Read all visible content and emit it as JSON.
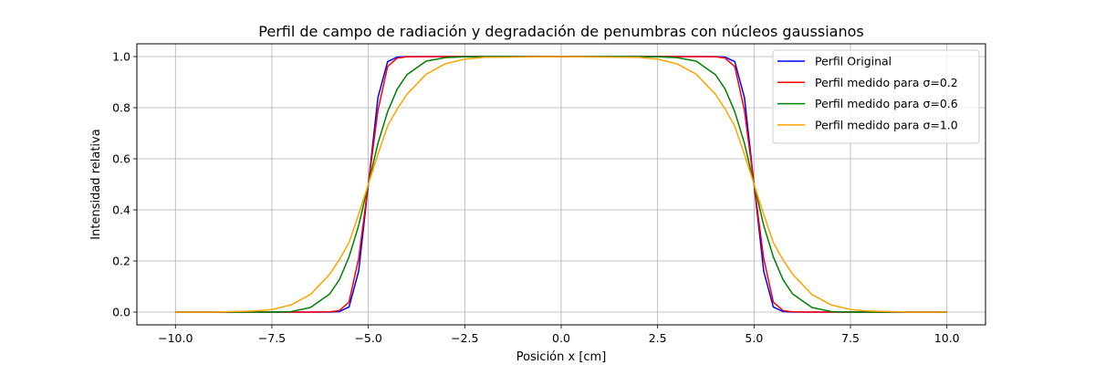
{
  "chart_data": {
    "type": "line",
    "title": "Perfil de campo de radiación y degradación de penumbras con núcleos gaussianos",
    "xlabel": "Posición x [cm]",
    "ylabel": "Intensidad relativa",
    "xlim": [
      -11,
      11
    ],
    "ylim": [
      -0.05,
      1.05
    ],
    "grid": true,
    "legend_position": "top-right",
    "xticks": [
      -10.0,
      -7.5,
      -5.0,
      -2.5,
      0.0,
      2.5,
      5.0,
      7.5,
      10.0
    ],
    "xtick_labels": [
      "−10.0",
      "−7.5",
      "−5.0",
      "−2.5",
      "0.0",
      "2.5",
      "5.0",
      "7.5",
      "10.0"
    ],
    "yticks": [
      0.0,
      0.2,
      0.4,
      0.6,
      0.8,
      1.0
    ],
    "ytick_labels": [
      "0.0",
      "0.2",
      "0.4",
      "0.6",
      "0.8",
      "1.0"
    ],
    "x": [
      -10,
      -9,
      -8,
      -7.5,
      -7,
      -6.5,
      -6,
      -5.75,
      -5.5,
      -5.25,
      -5,
      -4.75,
      -4.5,
      -4.25,
      -4,
      -3.5,
      -3,
      -2.5,
      -2,
      0,
      2,
      2.5,
      3,
      3.5,
      4,
      4.25,
      4.5,
      4.75,
      5,
      5.25,
      5.5,
      5.75,
      6,
      6.5,
      7,
      7.5,
      8,
      9,
      10
    ],
    "series": [
      {
        "name": "Perfil Original",
        "color": "#0000ff",
        "values": [
          0,
          0,
          0,
          0,
          0,
          0,
          0,
          0.002,
          0.02,
          0.16,
          0.5,
          0.84,
          0.98,
          0.998,
          1,
          1,
          1,
          1,
          1,
          1,
          1,
          1,
          1,
          1,
          1,
          0.998,
          0.98,
          0.84,
          0.5,
          0.16,
          0.02,
          0.002,
          0,
          0,
          0,
          0,
          0,
          0,
          0
        ]
      },
      {
        "name": "Perfil medido para σ=0.2",
        "color": "#ff0000",
        "values": [
          0,
          0,
          0,
          0,
          0,
          0,
          0.001,
          0.006,
          0.039,
          0.21,
          0.5,
          0.79,
          0.961,
          0.994,
          0.999,
          1,
          1,
          1,
          1,
          1,
          1,
          1,
          1,
          1,
          0.999,
          0.994,
          0.961,
          0.79,
          0.5,
          0.21,
          0.039,
          0.006,
          0.001,
          0,
          0,
          0,
          0,
          0,
          0
        ]
      },
      {
        "name": "Perfil medido para σ=0.6",
        "color": "#008000",
        "values": [
          0,
          0,
          0,
          0,
          0.002,
          0.018,
          0.071,
          0.127,
          0.216,
          0.339,
          0.5,
          0.661,
          0.784,
          0.873,
          0.929,
          0.982,
          0.996,
          0.999,
          1,
          1,
          1,
          0.999,
          0.996,
          0.982,
          0.929,
          0.873,
          0.784,
          0.661,
          0.5,
          0.339,
          0.216,
          0.127,
          0.071,
          0.018,
          0.002,
          0,
          0,
          0,
          0
        ]
      },
      {
        "name": "Perfil medido para σ=1.0",
        "color": "#ffa500",
        "values": [
          0,
          0,
          0.004,
          0.01,
          0.028,
          0.069,
          0.148,
          0.205,
          0.272,
          0.382,
          0.5,
          0.618,
          0.728,
          0.795,
          0.852,
          0.931,
          0.972,
          0.99,
          0.997,
          1,
          0.997,
          0.99,
          0.972,
          0.931,
          0.852,
          0.795,
          0.728,
          0.618,
          0.5,
          0.382,
          0.272,
          0.205,
          0.148,
          0.069,
          0.028,
          0.01,
          0.004,
          0,
          0
        ]
      }
    ]
  }
}
